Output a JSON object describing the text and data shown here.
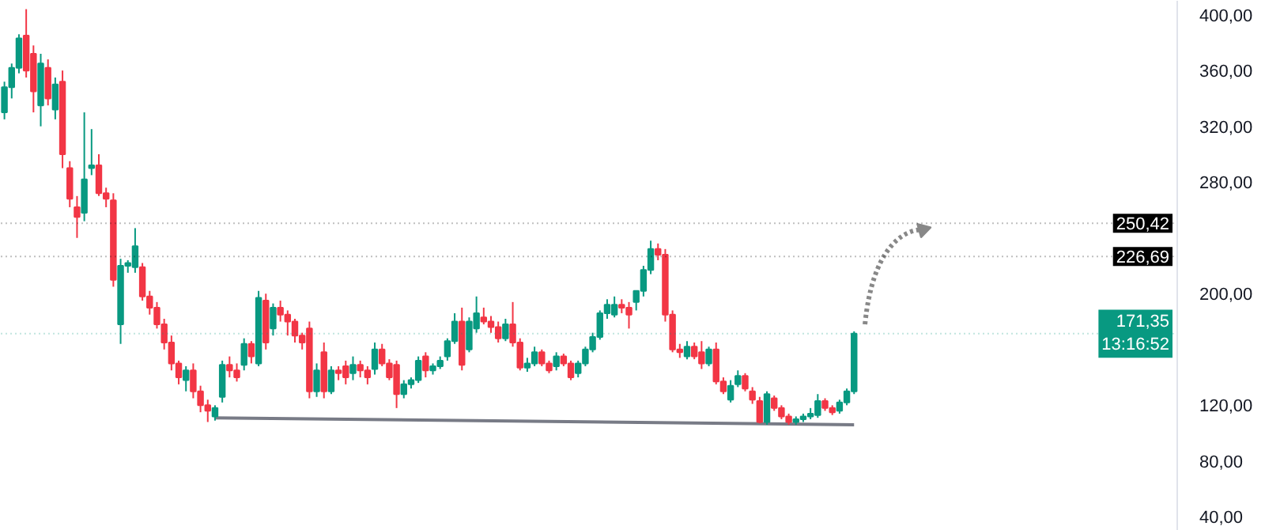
{
  "chart_data": {
    "type": "candlestick",
    "categories": [
      null,
      null,
      null,
      null,
      null,
      null,
      null,
      null,
      null,
      null,
      null,
      null,
      null,
      null,
      null,
      null,
      null,
      null,
      null,
      null,
      null,
      null,
      null,
      null,
      null,
      null,
      null,
      null,
      null,
      null,
      null,
      null,
      null,
      null,
      null,
      null,
      null,
      null,
      null,
      null,
      null,
      null,
      null,
      null,
      null,
      null,
      null,
      null,
      null,
      null,
      null,
      null,
      null,
      null,
      null,
      null,
      null,
      null,
      null,
      null,
      null,
      null,
      null,
      null,
      null,
      null,
      null,
      null,
      null,
      null,
      null,
      null,
      null,
      null,
      null,
      null,
      null,
      null,
      null,
      null,
      null,
      null,
      null,
      null,
      null,
      null,
      null,
      null,
      null,
      null,
      null,
      null,
      null,
      null,
      null,
      null,
      null,
      null,
      null,
      null,
      null,
      null,
      null,
      null,
      null,
      null,
      null,
      null,
      null,
      null,
      null,
      null,
      null,
      null,
      null,
      null,
      null,
      null,
      null,
      null,
      null,
      null,
      null,
      null,
      null,
      null,
      null,
      null,
      null,
      null,
      null,
      null,
      null,
      null,
      null,
      null,
      null,
      null,
      null,
      null,
      null,
      null,
      null,
      null,
      null,
      null,
      null,
      null,
      null,
      null,
      null,
      null,
      null,
      null,
      null,
      null,
      null,
      null,
      null,
      null,
      null,
      null
    ],
    "ohlc": [
      [
        330,
        352,
        325,
        348
      ],
      [
        348,
        365,
        340,
        362
      ],
      [
        362,
        386,
        358,
        383
      ],
      [
        385,
        404,
        355,
        360
      ],
      [
        372,
        378,
        330,
        345
      ],
      [
        335,
        372,
        320,
        365
      ],
      [
        362,
        368,
        335,
        340
      ],
      [
        332,
        355,
        325,
        350
      ],
      [
        352,
        360,
        290,
        300
      ],
      [
        290,
        295,
        262,
        268
      ],
      [
        262,
        270,
        240,
        255
      ],
      [
        258,
        330,
        252,
        282
      ],
      [
        290,
        318,
        285,
        292
      ],
      [
        292,
        300,
        270,
        272
      ],
      [
        272,
        276,
        262,
        268
      ],
      [
        267,
        272,
        205,
        210
      ],
      [
        178,
        225,
        164,
        220
      ],
      [
        220,
        224,
        215,
        222
      ],
      [
        219,
        247,
        215,
        234
      ],
      [
        219,
        222,
        195,
        198
      ],
      [
        198,
        202,
        185,
        190
      ],
      [
        190,
        194,
        175,
        178
      ],
      [
        178,
        182,
        160,
        165
      ],
      [
        165,
        170,
        145,
        150
      ],
      [
        150,
        152,
        135,
        140
      ],
      [
        138,
        148,
        130,
        145
      ],
      [
        145,
        150,
        125,
        130
      ],
      [
        130,
        134,
        115,
        120
      ],
      [
        120,
        124,
        108,
        116
      ],
      [
        112,
        120,
        109,
        118
      ],
      [
        126,
        152,
        122,
        149
      ],
      [
        149,
        155,
        140,
        145
      ],
      [
        145,
        150,
        137,
        140
      ],
      [
        149,
        168,
        145,
        164
      ],
      [
        164,
        166,
        150,
        155
      ],
      [
        150,
        202,
        148,
        197
      ],
      [
        195,
        200,
        160,
        165
      ],
      [
        175,
        193,
        170,
        190
      ],
      [
        190,
        195,
        180,
        185
      ],
      [
        185,
        188,
        170,
        180
      ],
      [
        180,
        182,
        165,
        170
      ],
      [
        170,
        172,
        160,
        165
      ],
      [
        175,
        180,
        125,
        130
      ],
      [
        130,
        150,
        126,
        145
      ],
      [
        158,
        165,
        125,
        130
      ],
      [
        130,
        148,
        128,
        145
      ],
      [
        145,
        148,
        138,
        143
      ],
      [
        148,
        152,
        135,
        140
      ],
      [
        143,
        155,
        138,
        149
      ],
      [
        149,
        152,
        140,
        145
      ],
      [
        145,
        148,
        135,
        140
      ],
      [
        146,
        165,
        142,
        160
      ],
      [
        160,
        164,
        148,
        150
      ],
      [
        150,
        153,
        138,
        140
      ],
      [
        149,
        152,
        118,
        128
      ],
      [
        128,
        138,
        125,
        135
      ],
      [
        135,
        140,
        132,
        138
      ],
      [
        138,
        155,
        136,
        152
      ],
      [
        155,
        158,
        140,
        145
      ],
      [
        145,
        150,
        142,
        148
      ],
      [
        148,
        155,
        146,
        152
      ],
      [
        155,
        168,
        152,
        166
      ],
      [
        166,
        186,
        164,
        180
      ],
      [
        180,
        190,
        145,
        149
      ],
      [
        160,
        183,
        158,
        180
      ],
      [
        175,
        198,
        172,
        186
      ],
      [
        183,
        190,
        178,
        180
      ],
      [
        180,
        184,
        172,
        176
      ],
      [
        176,
        180,
        165,
        168
      ],
      [
        168,
        182,
        166,
        178
      ],
      [
        178,
        194,
        162,
        165
      ],
      [
        165,
        168,
        145,
        147
      ],
      [
        147,
        154,
        144,
        150
      ],
      [
        150,
        162,
        148,
        158
      ],
      [
        158,
        160,
        148,
        150
      ],
      [
        150,
        152,
        143,
        145
      ],
      [
        148,
        158,
        145,
        155
      ],
      [
        155,
        157,
        148,
        150
      ],
      [
        150,
        152,
        138,
        140
      ],
      [
        143,
        152,
        140,
        150
      ],
      [
        150,
        162,
        148,
        160
      ],
      [
        160,
        172,
        158,
        169
      ],
      [
        169,
        188,
        167,
        186
      ],
      [
        186,
        196,
        182,
        192
      ],
      [
        185,
        198,
        183,
        192
      ],
      [
        192,
        196,
        186,
        190
      ],
      [
        190,
        194,
        175,
        185
      ],
      [
        194,
        202,
        188,
        202
      ],
      [
        202,
        220,
        198,
        217
      ],
      [
        217,
        238,
        214,
        232
      ],
      [
        232,
        236,
        224,
        228
      ],
      [
        228,
        232,
        180,
        185
      ],
      [
        185,
        188,
        158,
        160
      ],
      [
        160,
        164,
        154,
        158
      ],
      [
        155,
        166,
        153,
        162
      ],
      [
        162,
        165,
        153,
        155
      ],
      [
        158,
        166,
        146,
        150
      ],
      [
        150,
        162,
        148,
        160
      ],
      [
        160,
        165,
        135,
        137
      ],
      [
        137,
        140,
        128,
        130
      ],
      [
        124,
        138,
        122,
        134
      ],
      [
        135,
        145,
        133,
        141
      ],
      [
        141,
        143,
        130,
        132
      ],
      [
        130,
        133,
        121,
        124
      ],
      [
        123,
        126,
        107,
        108
      ],
      [
        108,
        130,
        106,
        128
      ],
      [
        125,
        127,
        116,
        118
      ],
      [
        118,
        120,
        110,
        112
      ],
      [
        112,
        114,
        106,
        108
      ],
      [
        108,
        112,
        106,
        110
      ],
      [
        110,
        114,
        108,
        112
      ],
      [
        112,
        118,
        110,
        114
      ],
      [
        113,
        128,
        111,
        123
      ],
      [
        123,
        125,
        116,
        118
      ],
      [
        118,
        120,
        113,
        115
      ],
      [
        116,
        124,
        114,
        122
      ],
      [
        122,
        132,
        120,
        130
      ],
      [
        130,
        173,
        128,
        171.35
      ],
      null,
      null,
      null,
      null,
      null,
      null,
      null,
      null,
      null,
      null,
      null,
      null,
      null,
      null,
      null,
      null,
      null,
      null,
      null,
      null,
      null,
      null,
      null,
      null,
      null,
      null,
      null,
      null,
      null,
      null,
      null,
      null,
      null,
      null,
      null,
      null,
      null,
      null,
      null,
      null,
      null,
      null,
      null,
      null
    ],
    "colors": [
      "#089981",
      "#089981",
      "#089981",
      "#f23645",
      "#f23645",
      "#089981",
      "#f23645",
      "#089981",
      "#f23645",
      "#f23645",
      "#f23645",
      "#089981",
      "#089981",
      "#f23645",
      "#f23645",
      "#f23645",
      "#089981",
      "#089981",
      "#089981",
      "#f23645",
      "#f23645",
      "#f23645",
      "#f23645",
      "#f23645",
      "#f23645",
      "#089981",
      "#f23645",
      "#f23645",
      "#f23645",
      "#089981",
      "#089981",
      "#f23645",
      "#f23645",
      "#089981",
      "#f23645",
      "#089981",
      "#f23645",
      "#089981",
      "#f23645",
      "#f23645",
      "#f23645",
      "#f23645",
      "#f23645",
      "#089981",
      "#f23645",
      "#089981",
      "#f23645",
      "#f23645",
      "#089981",
      "#f23645",
      "#f23645",
      "#089981",
      "#f23645",
      "#f23645",
      "#f23645",
      "#089981",
      "#089981",
      "#089981",
      "#f23645",
      "#089981",
      "#089981",
      "#089981",
      "#089981",
      "#f23645",
      "#089981",
      "#089981",
      "#f23645",
      "#f23645",
      "#f23645",
      "#089981",
      "#f23645",
      "#f23645",
      "#089981",
      "#089981",
      "#f23645",
      "#f23645",
      "#089981",
      "#f23645",
      "#f23645",
      "#089981",
      "#089981",
      "#089981",
      "#089981",
      "#089981",
      "#089981",
      "#f23645",
      "#f23645",
      "#089981",
      "#089981",
      "#089981",
      "#f23645",
      "#f23645",
      "#f23645",
      "#f23645",
      "#089981",
      "#f23645",
      "#f23645",
      "#089981",
      "#f23645",
      "#f23645",
      "#089981",
      "#089981",
      "#f23645",
      "#f23645",
      "#f23645",
      "#089981",
      "#f23645",
      "#f23645",
      "#f23645",
      "#089981",
      "#089981",
      "#089981",
      "#089981",
      "#f23645",
      "#f23645",
      "#089981",
      "#089981",
      "#089981",
      null,
      null,
      null,
      null,
      null,
      null,
      null,
      null,
      null,
      null,
      null,
      null,
      null,
      null,
      null,
      null,
      null,
      null,
      null,
      null,
      null,
      null,
      null,
      null,
      null,
      null,
      null,
      null,
      null,
      null,
      null,
      null,
      null,
      null,
      null,
      null,
      null,
      null,
      null,
      null,
      null,
      null,
      null,
      null
    ],
    "series": [
      {
        "type": "line",
        "color": "#787b86",
        "values": [
          null,
          null,
          null,
          null,
          null,
          null,
          null,
          null,
          null,
          null,
          null,
          null,
          null,
          null,
          null,
          null,
          null,
          null,
          null,
          null,
          null,
          null,
          null,
          null,
          null,
          null,
          null,
          null,
          null,
          111,
          null,
          null,
          null,
          null,
          null,
          null,
          null,
          null,
          null,
          null,
          null,
          null,
          null,
          null,
          null,
          null,
          null,
          null,
          null,
          null,
          null,
          null,
          null,
          null,
          null,
          null,
          null,
          null,
          null,
          null,
          null,
          null,
          null,
          null,
          null,
          null,
          null,
          null,
          null,
          null,
          null,
          null,
          null,
          null,
          null,
          null,
          null,
          null,
          null,
          null,
          null,
          null,
          null,
          null,
          null,
          null,
          null,
          null,
          null,
          null,
          null,
          null,
          null,
          null,
          null,
          null,
          null,
          null,
          null,
          null,
          null,
          null,
          null,
          null,
          null,
          null,
          null,
          null,
          null,
          null,
          null,
          null,
          null,
          null,
          null,
          null,
          null,
          106,
          null,
          null,
          null,
          null,
          null,
          null,
          null,
          null,
          null,
          null,
          null,
          null,
          null,
          null,
          null,
          null,
          null,
          null,
          null,
          null,
          null,
          null,
          null,
          null,
          null,
          null,
          null,
          null,
          null,
          null,
          null,
          null,
          null,
          null,
          null,
          null,
          null,
          null,
          null,
          null,
          null,
          null,
          null,
          null
        ]
      }
    ],
    "ylim": [
      30,
      410
    ],
    "yticks": [
      {
        "value": 400,
        "label": "400,00"
      },
      {
        "value": 360,
        "label": "360,00"
      },
      {
        "value": 320,
        "label": "320,00"
      },
      {
        "value": 280,
        "label": "280,00"
      },
      {
        "value": 200,
        "label": "200,00"
      },
      {
        "value": 120,
        "label": "120,00"
      },
      {
        "value": 80,
        "label": "80,00"
      },
      {
        "value": 40,
        "label": "40,00"
      }
    ],
    "ref_lines": [
      {
        "axis": "y",
        "value": 250.42,
        "label": "250,42",
        "color": "#000000"
      },
      {
        "axis": "y",
        "value": 226.69,
        "label": "226,69",
        "color": "#000000"
      },
      {
        "axis": "y",
        "value": 171.35,
        "label": "171,35\n13:16:52",
        "color": "#089981"
      }
    ],
    "tick_labels": "y",
    "grid": false
  }
}
